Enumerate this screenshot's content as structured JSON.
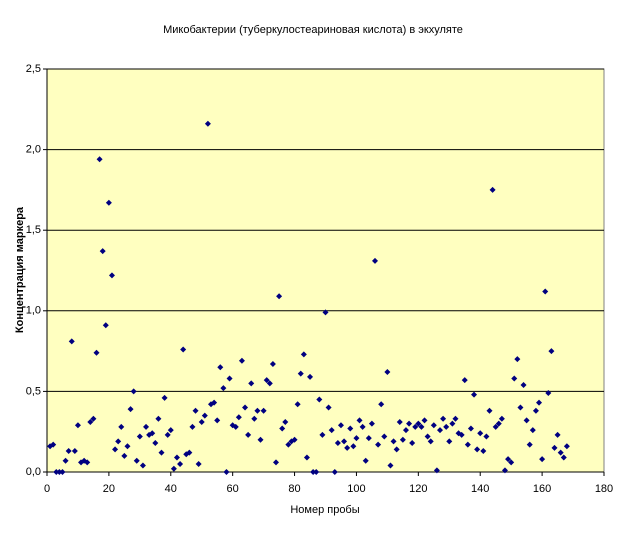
{
  "chart_data": {
    "type": "scatter",
    "title": "Микобактерии (туберкулостеариновая кислота) в экхуляте",
    "x_label": "Номер пробы",
    "y_label": "Концентрация маркера",
    "color": "#000080",
    "background": "#ffffc0",
    "grid": true,
    "xlim": [
      0,
      180
    ],
    "xticks": [
      0,
      20,
      40,
      60,
      80,
      100,
      120,
      140,
      160,
      180
    ],
    "ylim": [
      0,
      2.5
    ],
    "yticks": [
      {
        "value": 0,
        "label": "0,0"
      },
      {
        "value": 0.5,
        "label": "0,5"
      },
      {
        "value": 1,
        "label": "1,0"
      },
      {
        "value": 1.5,
        "label": "1,5"
      },
      {
        "value": 2,
        "label": "2,0"
      },
      {
        "value": 2.5,
        "label": "2,5"
      }
    ],
    "x": [
      1,
      2,
      3,
      4,
      5,
      6,
      7,
      8,
      9,
      10,
      11,
      12,
      13,
      14,
      15,
      16,
      17,
      18,
      19,
      20,
      21,
      22,
      23,
      24,
      25,
      26,
      27,
      28,
      29,
      30,
      31,
      32,
      33,
      34,
      35,
      36,
      37,
      38,
      39,
      40,
      41,
      42,
      43,
      44,
      45,
      46,
      47,
      48,
      49,
      50,
      51,
      52,
      53,
      54,
      55,
      56,
      57,
      58,
      59,
      60,
      61,
      62,
      63,
      64,
      65,
      66,
      67,
      68,
      69,
      70,
      71,
      72,
      73,
      74,
      75,
      76,
      77,
      78,
      79,
      80,
      81,
      82,
      83,
      84,
      85,
      86,
      87,
      88,
      89,
      90,
      91,
      92,
      93,
      94,
      95,
      96,
      97,
      98,
      99,
      100,
      101,
      102,
      103,
      104,
      105,
      106,
      107,
      108,
      109,
      110,
      111,
      112,
      113,
      114,
      115,
      116,
      117,
      118,
      119,
      120,
      121,
      122,
      123,
      124,
      125,
      126,
      127,
      128,
      129,
      130,
      131,
      132,
      133,
      134,
      135,
      136,
      137,
      138,
      139,
      140,
      141,
      142,
      143,
      144,
      145,
      146,
      147,
      148,
      149,
      150,
      151,
      152,
      153,
      154,
      155,
      156,
      157,
      158,
      159,
      160,
      161,
      162,
      163,
      164,
      165,
      166,
      167,
      168
    ],
    "values": [
      0.16,
      0.17,
      0,
      0,
      0,
      0.07,
      0.13,
      0.81,
      0.13,
      0.29,
      0.06,
      0.07,
      0.06,
      0.31,
      0.33,
      0.74,
      1.94,
      1.37,
      0.91,
      1.67,
      1.22,
      0.14,
      0.19,
      0.28,
      0.1,
      0.16,
      0.39,
      0.5,
      0.07,
      0.22,
      0.04,
      0.28,
      0.23,
      0.24,
      0.18,
      0.33,
      0.12,
      0.46,
      0.23,
      0.26,
      0.02,
      0.09,
      0.05,
      0.76,
      0.11,
      0.12,
      0.28,
      0.38,
      0.05,
      0.31,
      0.35,
      2.16,
      0.42,
      0.43,
      0.32,
      0.65,
      0.52,
      0,
      0.58,
      0.29,
      0.28,
      0.34,
      0.69,
      0.4,
      0.23,
      0.55,
      0.33,
      0.38,
      0.2,
      0.38,
      0.57,
      0.55,
      0.67,
      0.06,
      1.09,
      0.27,
      0.31,
      0.17,
      0.19,
      0.2,
      0.42,
      0.61,
      0.73,
      0.09,
      0.59,
      0,
      0,
      0.45,
      0.23,
      0.99,
      0.4,
      0.26,
      0,
      0.18,
      0.29,
      0.19,
      0.15,
      0.27,
      0.16,
      0.21,
      0.32,
      0.28,
      0.07,
      0.21,
      0.3,
      1.31,
      0.17,
      0.42,
      0.22,
      0.62,
      0.04,
      0.19,
      0.14,
      0.31,
      0.2,
      0.26,
      0.3,
      0.18,
      0.28,
      0.3,
      0.28,
      0.32,
      0.22,
      0.19,
      0.29,
      0.01,
      0.26,
      0.33,
      0.28,
      0.19,
      0.3,
      0.33,
      0.24,
      0.23,
      0.57,
      0.17,
      0.27,
      0.48,
      0.14,
      0.24,
      0.13,
      0.22,
      0.38,
      1.75,
      0.28,
      0.3,
      0.33,
      0.01,
      0.08,
      0.06,
      0.58,
      0.7,
      0.4,
      0.54,
      0.32,
      0.17,
      0.26,
      0.38,
      0.43,
      0.08,
      1.12,
      0.49,
      0.75,
      0.15,
      0.23,
      0.12,
      0.09,
      0.16
    ]
  }
}
